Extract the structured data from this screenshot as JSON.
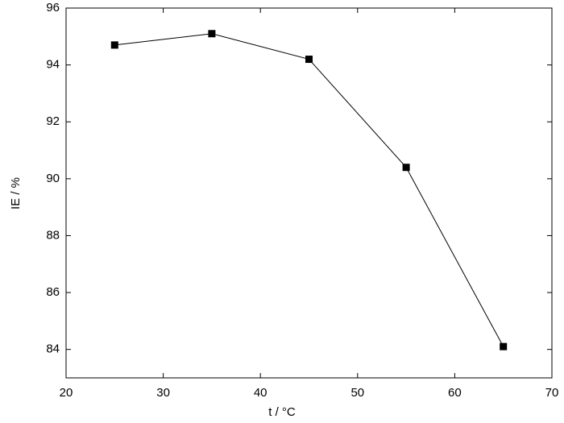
{
  "chart_data": {
    "type": "line",
    "x_label": "t / °C",
    "y_label": "IE / %",
    "x": [
      25,
      35,
      45,
      55,
      65
    ],
    "series": [
      {
        "color": "#000000",
        "values": [
          94.7,
          95.1,
          94.2,
          90.4,
          84.1
        ]
      }
    ],
    "xlim": [
      20,
      70
    ],
    "xticks": [
      20,
      30,
      40,
      50,
      60,
      70
    ],
    "ylim": [
      83,
      96
    ],
    "yticks": [
      84,
      86,
      88,
      90,
      92,
      94,
      96
    ],
    "grid": false
  }
}
